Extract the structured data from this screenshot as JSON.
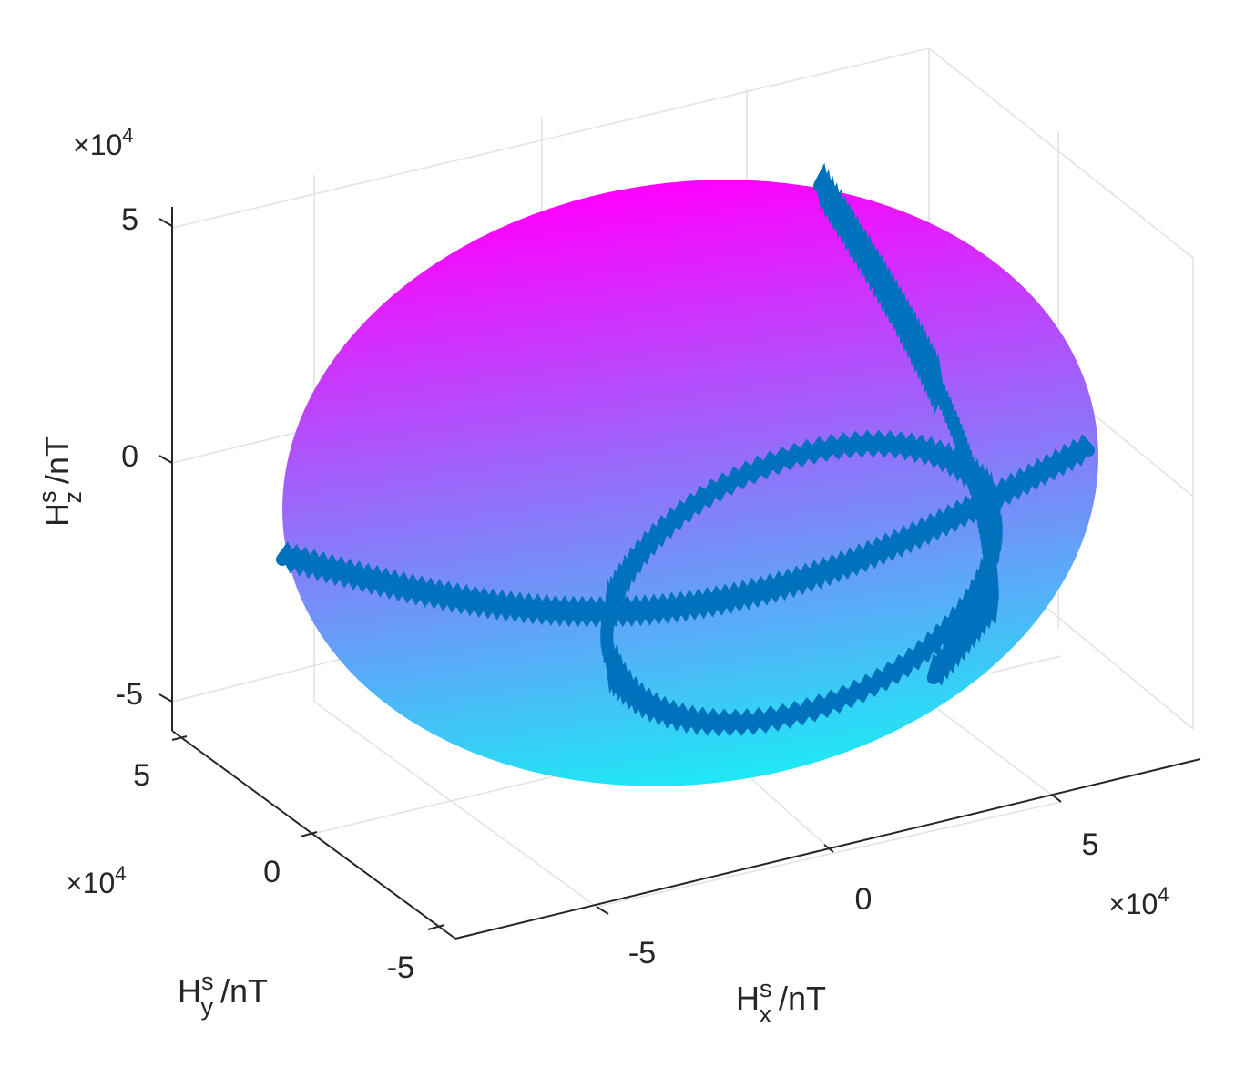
{
  "chart_data": {
    "type": "surface3d",
    "view": "3-D perspective",
    "grid": true,
    "x_axis": {
      "label": "H",
      "label_sup": "s",
      "label_sub": "x",
      "label_unit": "/nT",
      "ticks": [
        -5,
        0,
        5
      ],
      "tick_labels": [
        "-5",
        "0",
        "5"
      ],
      "multiplier_base": "×10",
      "multiplier_exp": "4",
      "lim": [
        -7,
        7
      ]
    },
    "y_axis": {
      "label": "H",
      "label_sup": "s",
      "label_sub": "y",
      "label_unit": "/nT",
      "ticks": [
        -5,
        0,
        5
      ],
      "tick_labels": [
        "-5",
        "0",
        "5"
      ],
      "multiplier_base": "×10",
      "multiplier_exp": "4",
      "lim": [
        -6.5,
        6.5
      ]
    },
    "z_axis": {
      "label": "H",
      "label_sup": "s",
      "label_sub": "z",
      "label_unit": "/nT",
      "ticks": [
        -5,
        0,
        5
      ],
      "tick_labels": [
        "-5",
        "0",
        "5"
      ],
      "multiplier_base": "×10",
      "multiplier_exp": "4",
      "lim": [
        -5,
        5
      ]
    },
    "surface": {
      "shape": "ellipsoid",
      "semi_axes": [
        5.3,
        5.0,
        5.0
      ],
      "colormap": "cool",
      "color_low": "#1ee8f5",
      "color_high": "#ff00ff"
    },
    "series": [
      {
        "type": "trajectory",
        "plane": "xy",
        "radius": 5.0,
        "color": "#0072bd"
      },
      {
        "type": "trajectory",
        "plane": "xz",
        "radius": 5.0,
        "color": "#0072bd"
      },
      {
        "type": "trajectory",
        "plane": "xy",
        "offset_z": 2.8,
        "radius": 2.6,
        "center_x": 1.5,
        "color": "#0072bd"
      }
    ]
  }
}
